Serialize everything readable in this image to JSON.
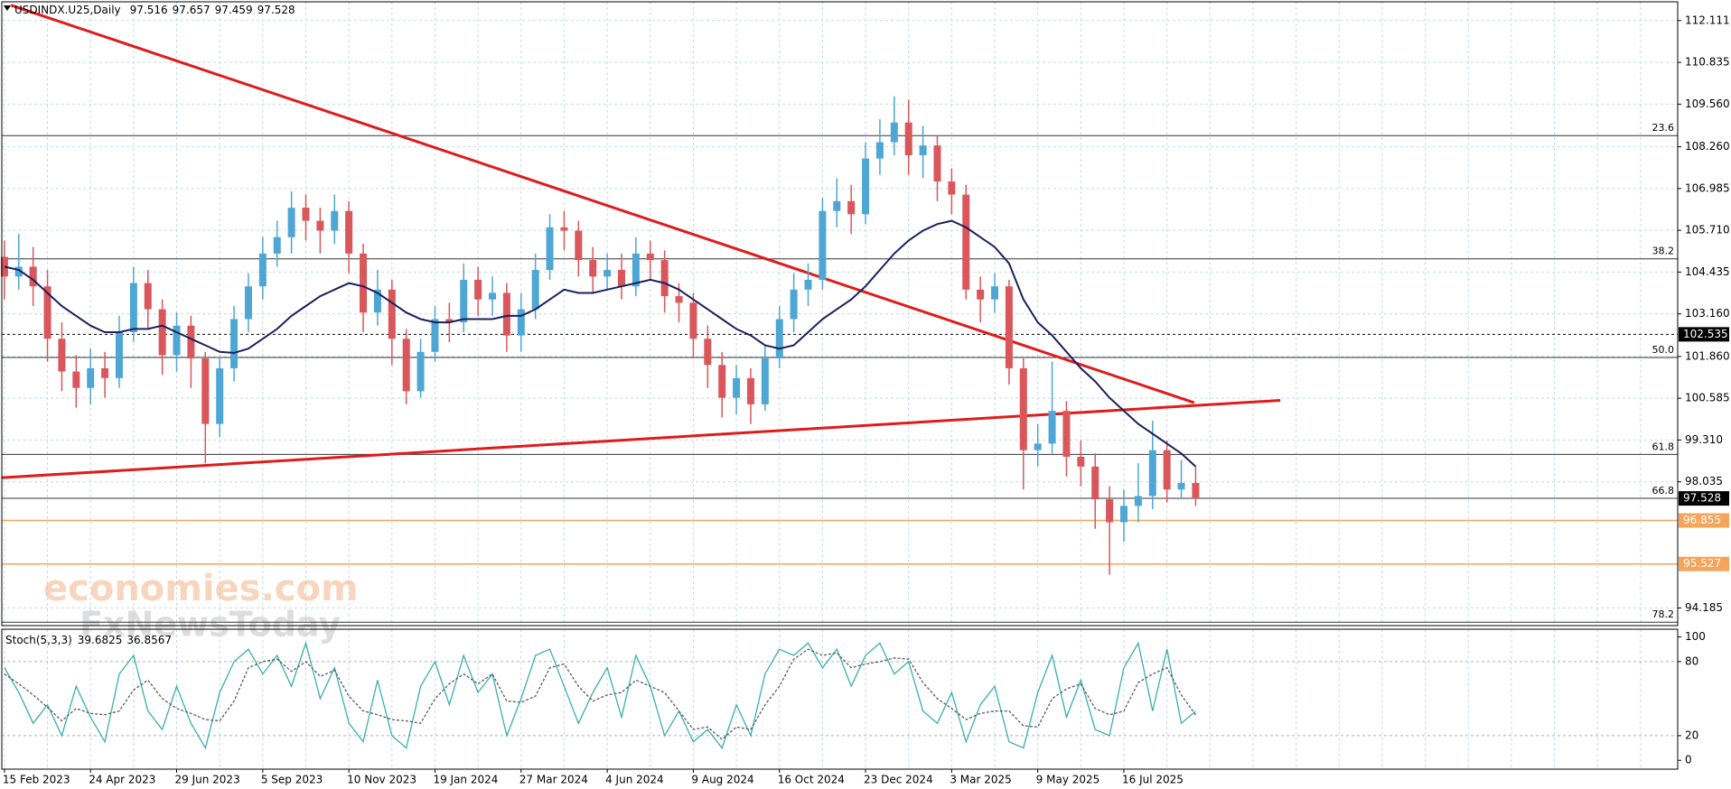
{
  "chart_data": [
    {
      "type": "candlestick",
      "title": "USDINDX.U25,Daily",
      "ohlc": [
        97.516,
        97.657,
        97.459,
        97.528
      ],
      "categories": [
        "15 Feb 2023",
        null,
        null,
        null,
        null,
        null,
        "24 Apr 2023",
        null,
        null,
        null,
        null,
        null,
        "29 Jun 2023",
        null,
        null,
        null,
        null,
        null,
        "5 Sep 2023",
        null,
        null,
        null,
        null,
        null,
        "10 Nov 2023",
        null,
        null,
        null,
        null,
        null,
        "19 Jan 2024",
        null,
        null,
        null,
        null,
        null,
        "27 Mar 2024",
        null,
        null,
        null,
        null,
        null,
        "4 Jun 2024",
        null,
        null,
        null,
        null,
        null,
        "9 Aug 2024",
        null,
        null,
        null,
        null,
        null,
        "16 Oct 2024",
        null,
        null,
        null,
        null,
        null,
        "23 Dec 2024",
        null,
        null,
        null,
        null,
        null,
        "3 Mar 2025",
        null,
        null,
        null,
        null,
        null,
        "9 May 2025",
        null,
        null,
        null,
        null,
        null,
        "16 Jul 2025",
        null,
        null,
        null,
        null,
        null
      ],
      "open": [
        104.9,
        104.3,
        104.6,
        104.0,
        102.4,
        101.4,
        100.9,
        101.5,
        101.2,
        102.6,
        104.1,
        103.3,
        101.9,
        102.8,
        101.8,
        99.8,
        101.5,
        103.0,
        104.0,
        105.0,
        105.5,
        106.4,
        106.0,
        105.7,
        106.3,
        105.0,
        103.2,
        103.9,
        102.4,
        100.8,
        102.0,
        103.0,
        102.9,
        104.2,
        103.6,
        103.8,
        102.5,
        103.3,
        104.5,
        105.8,
        105.7,
        104.8,
        104.3,
        104.5,
        104.0,
        105.0,
        104.8,
        103.7,
        103.5,
        102.4,
        101.6,
        100.6,
        101.2,
        100.4,
        101.8,
        103.0,
        103.9,
        104.2,
        106.3,
        106.6,
        106.2,
        107.9,
        108.4,
        109.0,
        108.0,
        108.3,
        107.2,
        106.8,
        103.9,
        103.6,
        104.0,
        101.5,
        99.0,
        99.2,
        100.2,
        98.8,
        98.5,
        97.5,
        96.8,
        97.3,
        97.6,
        99.0,
        97.8,
        98.0
      ],
      "high": [
        105.4,
        105.6,
        105.2,
        104.5,
        102.9,
        101.9,
        102.1,
        102.0,
        103.1,
        104.6,
        104.5,
        103.6,
        103.2,
        103.1,
        102.0,
        101.8,
        103.4,
        104.4,
        105.5,
        106.0,
        106.9,
        106.8,
        106.4,
        106.8,
        106.6,
        105.3,
        104.5,
        104.2,
        102.7,
        102.4,
        103.4,
        103.5,
        104.7,
        104.6,
        104.3,
        104.1,
        103.8,
        105.0,
        106.2,
        106.3,
        106.0,
        105.2,
        105.0,
        105.0,
        105.5,
        105.4,
        105.1,
        104.1,
        103.8,
        102.8,
        102.0,
        101.6,
        101.5,
        102.2,
        103.4,
        104.4,
        104.7,
        106.7,
        107.3,
        107.1,
        108.4,
        109.1,
        109.8,
        109.7,
        108.9,
        108.6,
        107.6,
        107.1,
        104.3,
        104.4,
        104.2,
        101.8,
        99.8,
        101.7,
        100.5,
        99.3,
        98.9,
        97.9,
        97.8,
        98.6,
        99.9,
        99.3,
        98.7,
        98.5
      ],
      "low": [
        103.6,
        103.9,
        103.4,
        101.7,
        100.8,
        100.3,
        100.4,
        100.6,
        100.9,
        102.3,
        102.7,
        101.3,
        101.4,
        100.9,
        98.6,
        99.4,
        101.1,
        102.6,
        103.6,
        104.6,
        105.0,
        105.4,
        105.0,
        105.3,
        104.4,
        102.6,
        102.8,
        101.6,
        100.4,
        100.6,
        101.7,
        102.3,
        102.6,
        103.1,
        103.1,
        102.0,
        102.0,
        103.0,
        104.2,
        105.1,
        104.3,
        103.8,
        103.9,
        103.6,
        103.7,
        104.2,
        103.2,
        102.9,
        101.8,
        100.9,
        100.0,
        100.1,
        99.8,
        100.2,
        101.5,
        102.6,
        103.4,
        103.9,
        105.8,
        105.6,
        105.9,
        107.4,
        108.0,
        107.4,
        107.3,
        106.6,
        106.2,
        103.6,
        102.9,
        103.2,
        101.0,
        97.8,
        98.5,
        98.9,
        98.2,
        97.9,
        96.6,
        95.2,
        96.2,
        96.8,
        97.2,
        97.4,
        97.5,
        97.3
      ],
      "close": [
        104.3,
        104.6,
        104.0,
        102.4,
        101.4,
        100.9,
        101.5,
        101.2,
        102.6,
        104.1,
        103.3,
        101.9,
        102.8,
        101.8,
        99.8,
        101.5,
        103.0,
        104.0,
        105.0,
        105.5,
        106.4,
        106.0,
        105.7,
        106.3,
        105.0,
        103.2,
        103.9,
        102.4,
        100.8,
        102.0,
        103.0,
        102.9,
        104.2,
        103.6,
        103.8,
        102.5,
        103.3,
        104.5,
        105.8,
        105.7,
        104.8,
        104.3,
        104.5,
        104.0,
        105.0,
        104.8,
        103.7,
        103.5,
        102.4,
        101.6,
        100.6,
        101.2,
        100.4,
        101.8,
        103.0,
        103.9,
        104.2,
        106.3,
        106.6,
        106.2,
        107.9,
        108.4,
        109.0,
        108.0,
        108.3,
        107.2,
        106.8,
        103.9,
        103.6,
        104.0,
        101.5,
        99.0,
        99.2,
        100.2,
        98.8,
        98.5,
        97.5,
        96.8,
        97.3,
        97.6,
        99.0,
        97.8,
        98.0,
        97.528
      ],
      "up_color": "#4ea6d4",
      "down_color": "#d9575a",
      "ylim": [
        93.646,
        112.684
      ],
      "yticks": [
        112.111,
        110.835,
        {
          "value": 109.56,
          "label": "109.560"
        },
        {
          "value": 108.26,
          "label": "108.260"
        },
        106.985,
        {
          "value": 105.71,
          "label": "105.710"
        },
        104.435,
        {
          "value": 103.16,
          "label": "103.160"
        },
        {
          "value": 101.86,
          "label": "101.860"
        },
        100.585,
        {
          "value": 99.31,
          "label": "99.310"
        },
        98.035,
        94.185
      ],
      "grid": true,
      "moving_average": {
        "color": "#1b1f5c",
        "values": [
          104.6,
          104.5,
          104.2,
          103.8,
          103.4,
          103.1,
          102.8,
          102.6,
          102.6,
          102.7,
          102.7,
          102.8,
          102.6,
          102.4,
          102.2,
          102.0,
          101.97,
          102.1,
          102.4,
          102.7,
          103.1,
          103.4,
          103.7,
          103.9,
          104.1,
          104.0,
          103.8,
          103.5,
          103.2,
          103.0,
          102.9,
          102.9,
          103.0,
          103.0,
          103.0,
          103.1,
          103.1,
          103.3,
          103.6,
          103.9,
          103.8,
          103.8,
          103.9,
          104.0,
          104.1,
          104.2,
          104.1,
          103.9,
          103.6,
          103.3,
          103.0,
          102.7,
          102.5,
          102.2,
          102.1,
          102.2,
          102.6,
          103.0,
          103.3,
          103.6,
          104.0,
          104.5,
          105.0,
          105.4,
          105.7,
          105.9,
          106.0,
          105.8,
          105.5,
          105.2,
          104.7,
          103.6,
          102.9,
          102.5,
          102.0,
          101.5,
          101.1,
          100.6,
          100.2,
          99.8,
          99.5,
          99.2,
          98.9,
          98.5
        ]
      },
      "trendlines": [
        {
          "color": "#e01b1b",
          "values": [
            112.58,
            100.45
          ]
        },
        {
          "color": "#e01b1b",
          "values": [
            98.16,
            100.52
          ]
        }
      ],
      "levels": [
        {
          "label": "23.6",
          "value": 108.6
        },
        {
          "label": "38.2",
          "value": 104.84
        },
        {
          "label": "50.0",
          "value": 101.83
        },
        {
          "label": "61.8",
          "value": 98.87
        },
        {
          "label": "66.8",
          "value": 97.53
        },
        {
          "label": "78.2",
          "value": 93.75
        }
      ],
      "lines": [
        {
          "value": 102.535,
          "color": "#000000",
          "style": "dashed"
        },
        {
          "value": 96.855,
          "color": "#f4a55a",
          "style": "solid"
        },
        {
          "value": 95.527,
          "color": "#f4a55a",
          "style": "solid"
        }
      ],
      "watermark": [
        "economies.com",
        "FxNewsToday"
      ]
    },
    {
      "type": "line",
      "title": "Stoch(5,3,3)",
      "series": [
        {
          "color": "#3aaeb0",
          "style": "solid",
          "values": [
            75,
            55,
            30,
            45,
            20,
            60,
            35,
            15,
            70,
            85,
            40,
            25,
            60,
            30,
            10,
            55,
            80,
            90,
            70,
            85,
            60,
            95,
            50,
            75,
            30,
            15,
            65,
            20,
            10,
            60,
            80,
            45,
            85,
            55,
            70,
            20,
            50,
            85,
            90,
            60,
            30,
            55,
            75,
            35,
            85,
            60,
            20,
            40,
            15,
            25,
            10,
            45,
            20,
            70,
            90,
            85,
            95,
            75,
            90,
            60,
            85,
            95,
            70,
            80,
            40,
            30,
            55,
            15,
            45,
            60,
            15,
            10,
            55,
            85,
            35,
            65,
            25,
            20,
            75,
            95,
            40,
            90,
            30,
            39.6825
          ]
        },
        {
          "color": "#5a5a5a",
          "style": "dashed",
          "values": [
            70,
            62,
            53,
            43,
            32,
            42,
            38,
            37,
            40,
            57,
            65,
            50,
            42,
            38,
            33,
            32,
            48,
            75,
            80,
            82,
            72,
            80,
            68,
            73,
            52,
            40,
            37,
            33,
            32,
            30,
            50,
            62,
            70,
            62,
            70,
            48,
            47,
            52,
            75,
            78,
            60,
            48,
            53,
            55,
            65,
            60,
            55,
            40,
            25,
            27,
            17,
            27,
            25,
            45,
            60,
            82,
            90,
            85,
            87,
            75,
            78,
            80,
            83,
            82,
            63,
            50,
            42,
            33,
            38,
            40,
            40,
            28,
            27,
            50,
            58,
            62,
            42,
            37,
            40,
            63,
            70,
            75,
            53,
            36.8567
          ]
        }
      ],
      "ylim": [
        -7.14,
        106.25
      ],
      "yticks": [
        100,
        80,
        20,
        0
      ],
      "levels": [
        20,
        80
      ]
    }
  ]
}
